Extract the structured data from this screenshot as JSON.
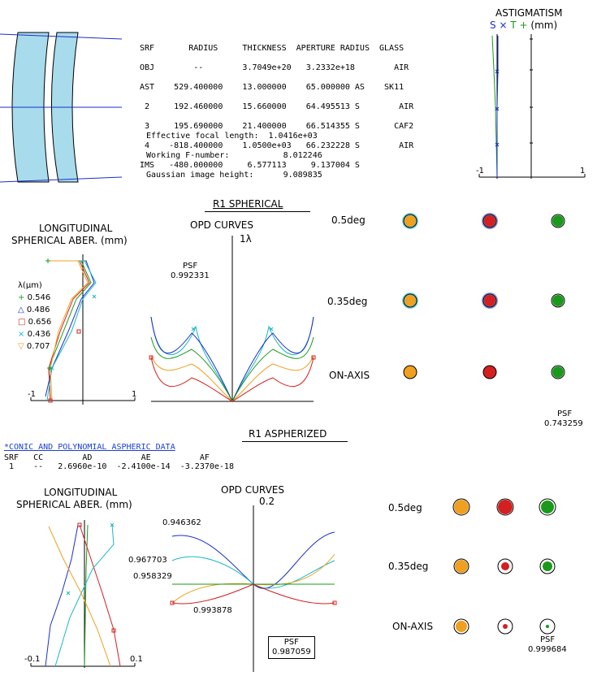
{
  "lens_table": {
    "header": "SRF       RADIUS     THICKNESS  APERTURE RADIUS  GLASS",
    "rows": [
      "OBJ        --        3.7049e+20   3.2332e+18        AIR",
      "AST    529.400000    13.000000    65.000000 AS    SK11",
      " 2     192.460000    15.660000    64.495513 S        AIR",
      " 3     195.690000    21.400000    66.514355 S       CAF2",
      " 4    -818.400000    1.0500e+03   66.232228 S        AIR",
      "IMS   -480.000000     6.577113     9.137004 S"
    ]
  },
  "specs": {
    "efl": "Effective focal length:  1.0416e+03",
    "fno": "Working F-number:           8.012246",
    "img": "Gaussian image height:      9.089835"
  },
  "astig": {
    "title": "ASTIGMATISM",
    "legend_s": "S",
    "legend_x": "×",
    "legend_t": "T",
    "legend_plus": "+",
    "legend_unit": "(mm)",
    "xmin": "-1",
    "xmax": "1"
  },
  "r1_spherical": {
    "title": "R1 SPHERICAL",
    "long_title_1": "LONGITUDINAL",
    "long_title_2": "SPHERICAL ABER. (mm)",
    "xmin": "-1",
    "xmax": "1",
    "opd_title": "OPD CURVES",
    "opd_scale": "1λ",
    "psf_label": "PSF",
    "psf_value": "0.992331"
  },
  "wavelength_legend": {
    "title": "λ(μm)",
    "items": [
      {
        "symbol": "+",
        "value": "0.546",
        "color": "#1a9a1a"
      },
      {
        "symbol": "△",
        "value": "0.486",
        "color": "#1a2fcc"
      },
      {
        "symbol": "□",
        "value": "0.656",
        "color": "#d42020"
      },
      {
        "symbol": "×",
        "value": "0.436",
        "color": "#18b8c8"
      },
      {
        "symbol": "▽",
        "value": "0.707",
        "color": "#f0a020"
      }
    ]
  },
  "spots_top": {
    "labels": [
      "0.5deg",
      "0.35deg",
      "ON-AXIS"
    ],
    "psf_label": "PSF",
    "psf_value": "0.743259"
  },
  "r1_asphere": {
    "title": "R1 ASPHERIZED",
    "link": "*CONIC AND POLYNOMIAL ASPHERIC DATA",
    "table_header": "SRF   CC        AD          AE          AF",
    "table_row": " 1    --   2.6960e-10  -2.4100e-14  -3.2370e-18",
    "long_title_1": "LONGITUDINAL",
    "long_title_2": "SPHERICAL ABER. (mm)",
    "xmin": "-0.1",
    "xmax": "0.1",
    "opd_title": "OPD CURVES",
    "opd_scale": "0.2",
    "opd_labels": [
      "0.946362",
      "0.967703",
      "0.958329",
      "0.993878"
    ],
    "psf_label": "PSF",
    "psf_value": "0.987059"
  },
  "spots_bottom": {
    "labels": [
      "0.5deg",
      "0.35deg",
      "ON-AXIS"
    ],
    "psf_label": "PSF",
    "psf_value": "0.999684"
  },
  "colors": {
    "green": "#1a9a1a",
    "blue": "#1a2fcc",
    "red": "#d42020",
    "cyan": "#18b8c8",
    "orange": "#f0a020",
    "lens_fill": "#a8dcec"
  }
}
